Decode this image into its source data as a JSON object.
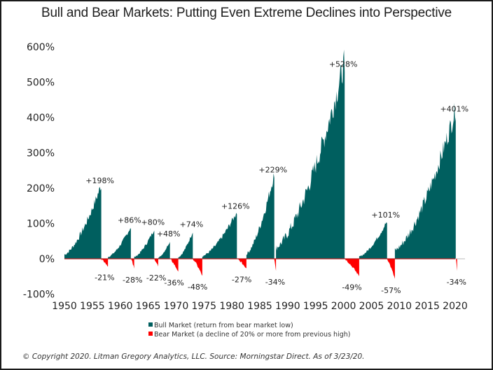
{
  "chart_data": {
    "type": "area",
    "title": "Bull and Bear Markets: Putting Even Extreme Declines into Perspective",
    "xlabel": "",
    "ylabel": "",
    "xlim": [
      1950,
      2020
    ],
    "ylim": [
      -100,
      600
    ],
    "x_ticks": [
      "1950",
      "1955",
      "1960",
      "1965",
      "1970",
      "1975",
      "1980",
      "1985",
      "1990",
      "1995",
      "2000",
      "2005",
      "2010",
      "2015",
      "2020"
    ],
    "y_ticks": [
      "600%",
      "500%",
      "400%",
      "300%",
      "200%",
      "100%",
      "0%",
      "-100%"
    ],
    "y_tick_values": [
      600,
      500,
      400,
      300,
      200,
      100,
      0,
      -100
    ],
    "colors": {
      "bull": "#005f5f",
      "bear": "#ff0000",
      "zero_line": "#b22222"
    },
    "series": [
      {
        "name": "Bull Market",
        "periods": [
          {
            "start": 1950.0,
            "end": 1956.6,
            "peak": 198,
            "label": "+198%"
          },
          {
            "start": 1957.8,
            "end": 1961.9,
            "peak": 86,
            "label": "+86%"
          },
          {
            "start": 1962.5,
            "end": 1966.1,
            "peak": 80,
            "label": "+80%"
          },
          {
            "start": 1966.8,
            "end": 1968.9,
            "peak": 48,
            "label": "+48%"
          },
          {
            "start": 1970.4,
            "end": 1973.0,
            "peak": 74,
            "label": "+74%"
          },
          {
            "start": 1974.7,
            "end": 1980.9,
            "peak": 126,
            "label": "+126%"
          },
          {
            "start": 1982.6,
            "end": 1987.6,
            "peak": 229,
            "label": "+229%"
          },
          {
            "start": 1987.9,
            "end": 2000.2,
            "peak": 528,
            "label": "+528%"
          },
          {
            "start": 2002.8,
            "end": 2007.8,
            "peak": 101,
            "label": "+101%"
          },
          {
            "start": 2009.2,
            "end": 2020.1,
            "peak": 401,
            "label": "+401%"
          }
        ]
      },
      {
        "name": "Bear Market",
        "periods": [
          {
            "start": 1956.6,
            "end": 1957.8,
            "trough": -21,
            "label": "-21%"
          },
          {
            "start": 1961.9,
            "end": 1962.5,
            "trough": -28,
            "label": "-28%"
          },
          {
            "start": 1966.1,
            "end": 1966.8,
            "trough": -22,
            "label": "-22%"
          },
          {
            "start": 1968.9,
            "end": 1970.4,
            "trough": -36,
            "label": "-36%"
          },
          {
            "start": 1973.0,
            "end": 1974.7,
            "trough": -48,
            "label": "-48%"
          },
          {
            "start": 1980.9,
            "end": 1982.6,
            "trough": -27,
            "label": "-27%"
          },
          {
            "start": 1987.6,
            "end": 1987.9,
            "trough": -34,
            "label": "-34%"
          },
          {
            "start": 2000.2,
            "end": 2002.8,
            "trough": -49,
            "label": "-49%"
          },
          {
            "start": 2007.8,
            "end": 2009.2,
            "trough": -57,
            "label": "-57%"
          },
          {
            "start": 2020.1,
            "end": 2020.2,
            "trough": -34,
            "label": "-34%"
          }
        ]
      }
    ],
    "legend": {
      "placement": "bottom-center",
      "entries": [
        {
          "label": "Bull Market (return from bear market low)",
          "color": "#005f5f"
        },
        {
          "label": "Bear Market (a decline of 20% or more from previous high)",
          "color": "#ff0000"
        }
      ]
    }
  },
  "footer": "© Copyright 2020. Litman Gregory Analytics, LLC. Source: Morningstar Direct. As of 3/23/20."
}
